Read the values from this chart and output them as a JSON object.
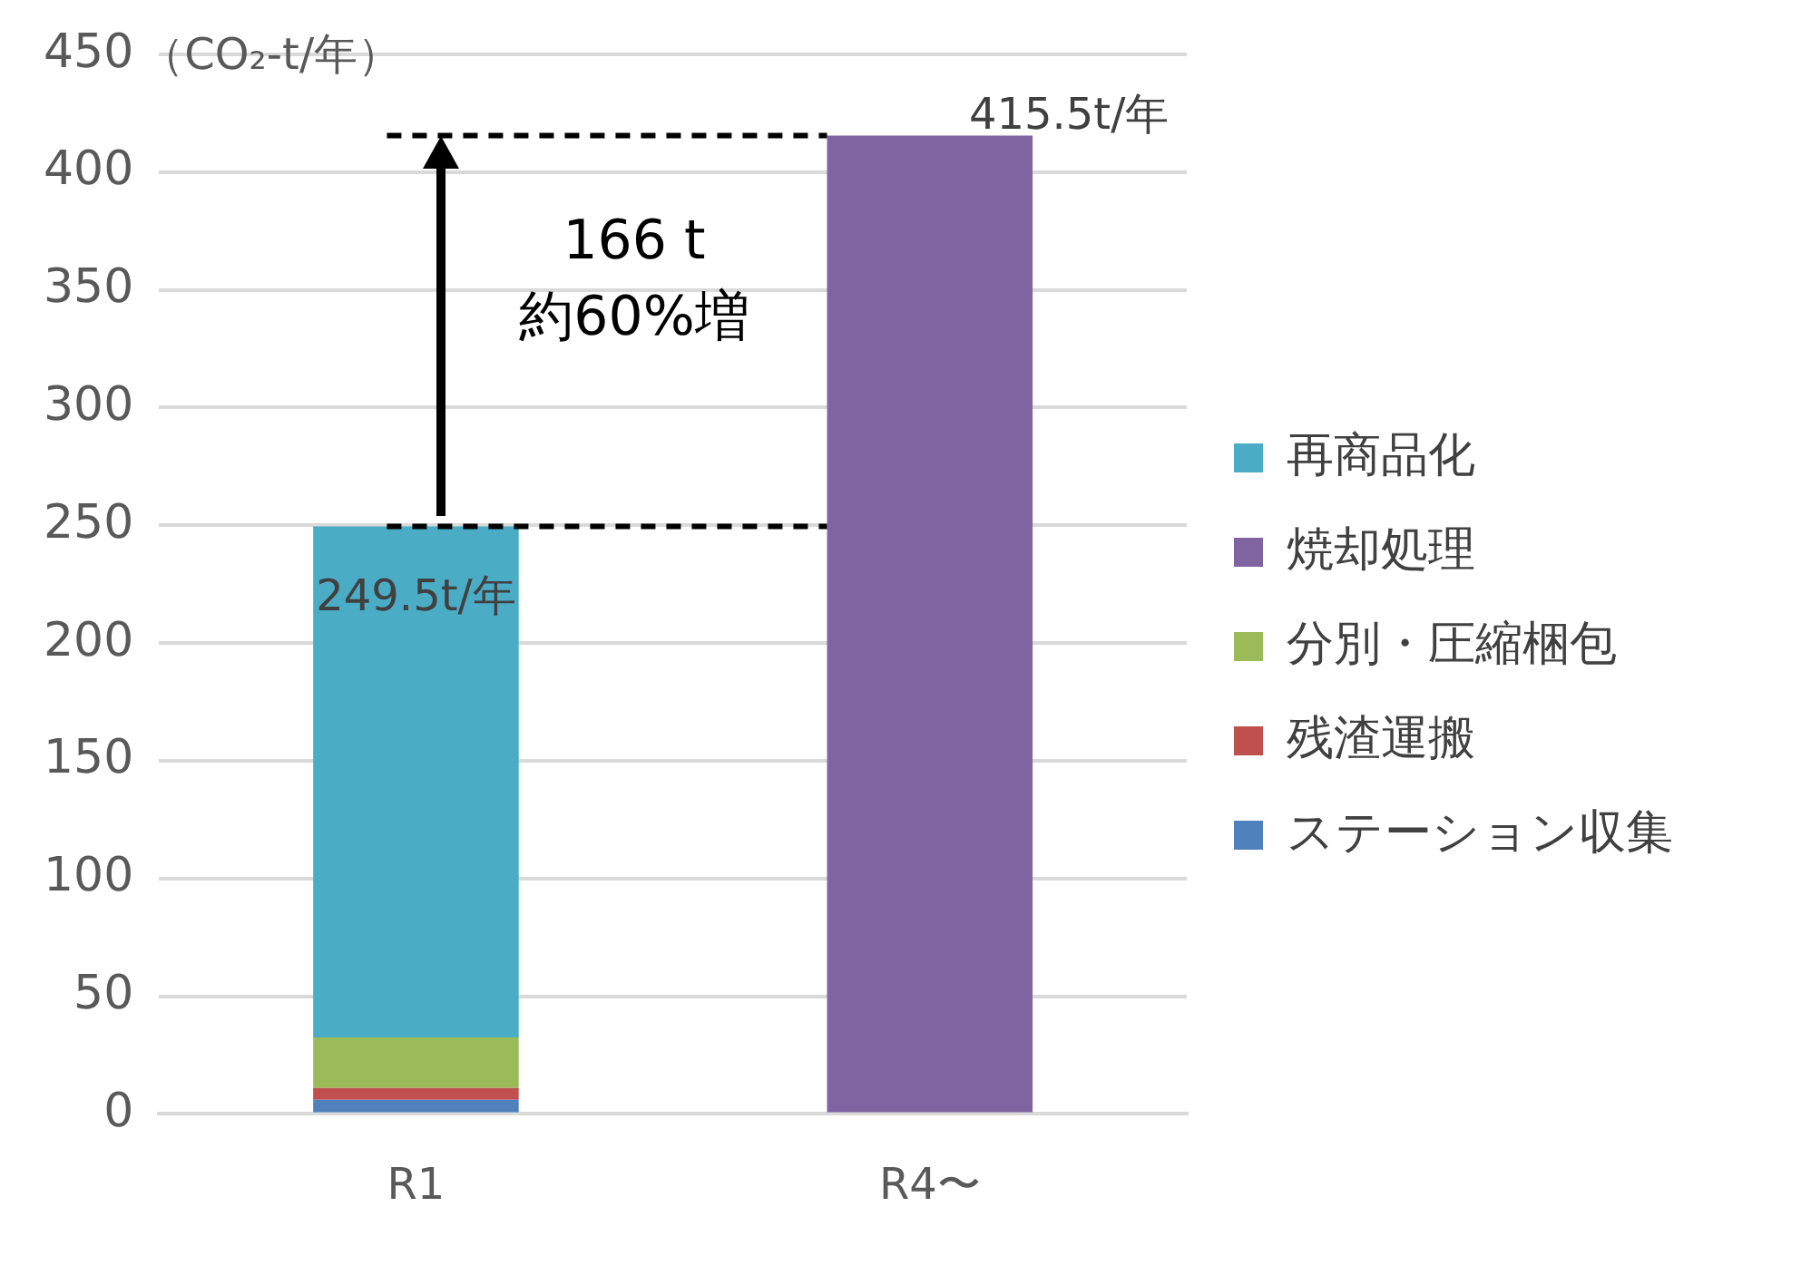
{
  "chart_data": {
    "type": "bar",
    "stacked": true,
    "categories": [
      "R1",
      "R4〜"
    ],
    "series": [
      {
        "name": "ステーション収集",
        "color": "#4f81bd",
        "values": [
          6,
          null
        ]
      },
      {
        "name": "残渣運搬",
        "color": "#c0504d",
        "values": [
          5,
          null
        ]
      },
      {
        "name": "分別・圧縮梱包",
        "color": "#9bbb59",
        "values": [
          21.5,
          null
        ]
      },
      {
        "name": "焼却処理",
        "color": "#8064a2",
        "values": [
          null,
          415.5
        ]
      },
      {
        "name": "再商品化",
        "color": "#4bacc6",
        "values": [
          217,
          null
        ]
      }
    ],
    "ylabel": "（CO₂-t/年）",
    "ylim": [
      0,
      450
    ],
    "yticks": [
      0,
      50,
      100,
      150,
      200,
      250,
      300,
      350,
      400,
      450
    ],
    "grid": "y",
    "legend": "right",
    "ref_lines": [
      {
        "axis": "y",
        "value": 249.5,
        "color": "#000000",
        "line_style": "dashed"
      },
      {
        "axis": "y",
        "value": 415.5,
        "color": "#000000",
        "line_style": "dashed"
      }
    ],
    "annotations": [
      "166 t",
      "約60%増",
      {
        "text": "249.5t/年",
        "x": "R1",
        "y": 249.5
      },
      {
        "text": "415.5t/年",
        "x": "R4〜",
        "y": 415.5
      }
    ]
  }
}
